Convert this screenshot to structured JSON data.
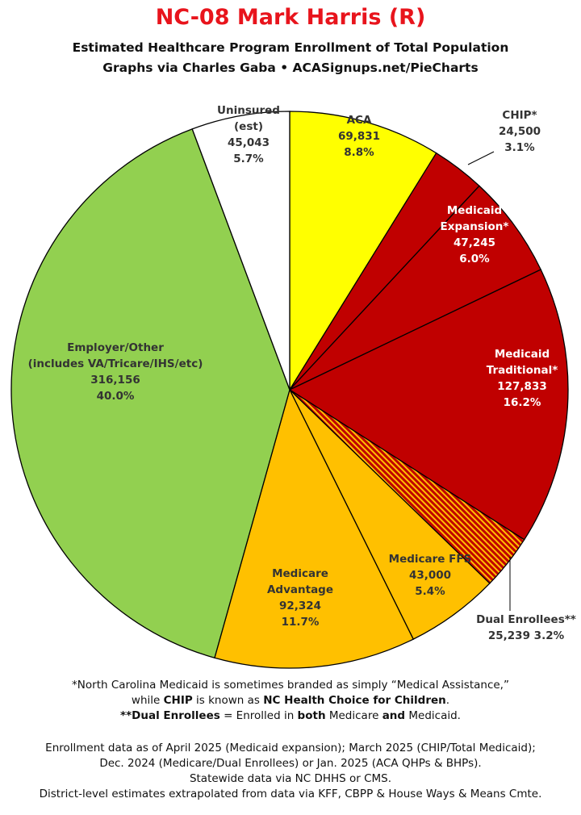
{
  "title": "NC-08 Mark Harris (R)",
  "subtitle1": "Estimated Healthcare Program Enrollment of Total Population",
  "subtitle2": "Graphs via Charles Gaba  •  ACASignups.net/PieCharts",
  "chart_data": {
    "type": "pie",
    "title": "NC-08 Mark Harris (R)",
    "slices": [
      {
        "id": "aca",
        "lines": [
          "ACA",
          "69,831",
          "8.8%"
        ],
        "value": 69831,
        "percent": 8.8,
        "color": "#ffff00",
        "text_color": "#333333"
      },
      {
        "id": "chip",
        "lines": [
          "CHIP*",
          "24,500",
          "3.1%"
        ],
        "value": 24500,
        "percent": 3.1,
        "color": "#c00000",
        "text_color": "#333333"
      },
      {
        "id": "medicaid-expansion",
        "lines": [
          "Medicaid",
          "Expansion*",
          "47,245",
          "6.0%"
        ],
        "value": 47245,
        "percent": 6.0,
        "color": "#c00000",
        "text_color": "#ffffff"
      },
      {
        "id": "medicaid-traditional",
        "lines": [
          "Medicaid",
          "Traditional*",
          "127,833",
          "16.2%"
        ],
        "value": 127833,
        "percent": 16.2,
        "color": "#c00000",
        "text_color": "#ffffff"
      },
      {
        "id": "dual-enrollees",
        "lines": [
          "Dual Enrollees**",
          "25,239 3.2%"
        ],
        "value": 25239,
        "percent": 3.2,
        "color": "#c00000",
        "pattern": "stripes",
        "text_color": "#333333"
      },
      {
        "id": "medicare-ffs",
        "lines": [
          "Medicare FFS",
          "43,000",
          "5.4%"
        ],
        "value": 43000,
        "percent": 5.4,
        "color": "#ffc000",
        "text_color": "#333333"
      },
      {
        "id": "medicare-advantage",
        "lines": [
          "Medicare",
          "Advantage",
          "92,324",
          "11.7%"
        ],
        "value": 92324,
        "percent": 11.7,
        "color": "#ffc000",
        "text_color": "#333333"
      },
      {
        "id": "employer-other",
        "lines": [
          "Employer/Other",
          "(includes VA/Tricare/IHS/etc)",
          "316,156",
          "40.0%"
        ],
        "value": 316156,
        "percent": 40.0,
        "color": "#92d050",
        "text_color": "#333333"
      },
      {
        "id": "uninsured",
        "lines": [
          "Uninsured",
          "(est)",
          "45,043",
          "5.7%"
        ],
        "value": 45043,
        "percent": 5.7,
        "color": "#ffffff",
        "text_color": "#333333"
      }
    ]
  },
  "footnotes": {
    "line1": "*North Carolina Medicaid is sometimes branded as simply “Medical Assistance,”",
    "line2_a": "while ",
    "line2_b": "CHIP",
    "line2_c": " is known as ",
    "line2_d": "NC Health Choice for Children",
    "line2_e": ".",
    "line3_a": "**Dual Enrollees",
    "line3_b": " = Enrolled in ",
    "line3_c": "both",
    "line3_d": " Medicare ",
    "line3_e": "and",
    "line3_f": " Medicaid.",
    "line4": "Enrollment data as of April 2025 (Medicaid expansion); March 2025 (CHIP/Total Medicaid);",
    "line5": "Dec. 2024 (Medicare/Dual Enrollees) or Jan. 2025 (ACA QHPs & BHPs).",
    "line6": "Statewide data via NC DHHS or CMS.",
    "line7": "District-level estimates extrapolated from data via KFF, CBPP & House Ways & Means Cmte."
  }
}
